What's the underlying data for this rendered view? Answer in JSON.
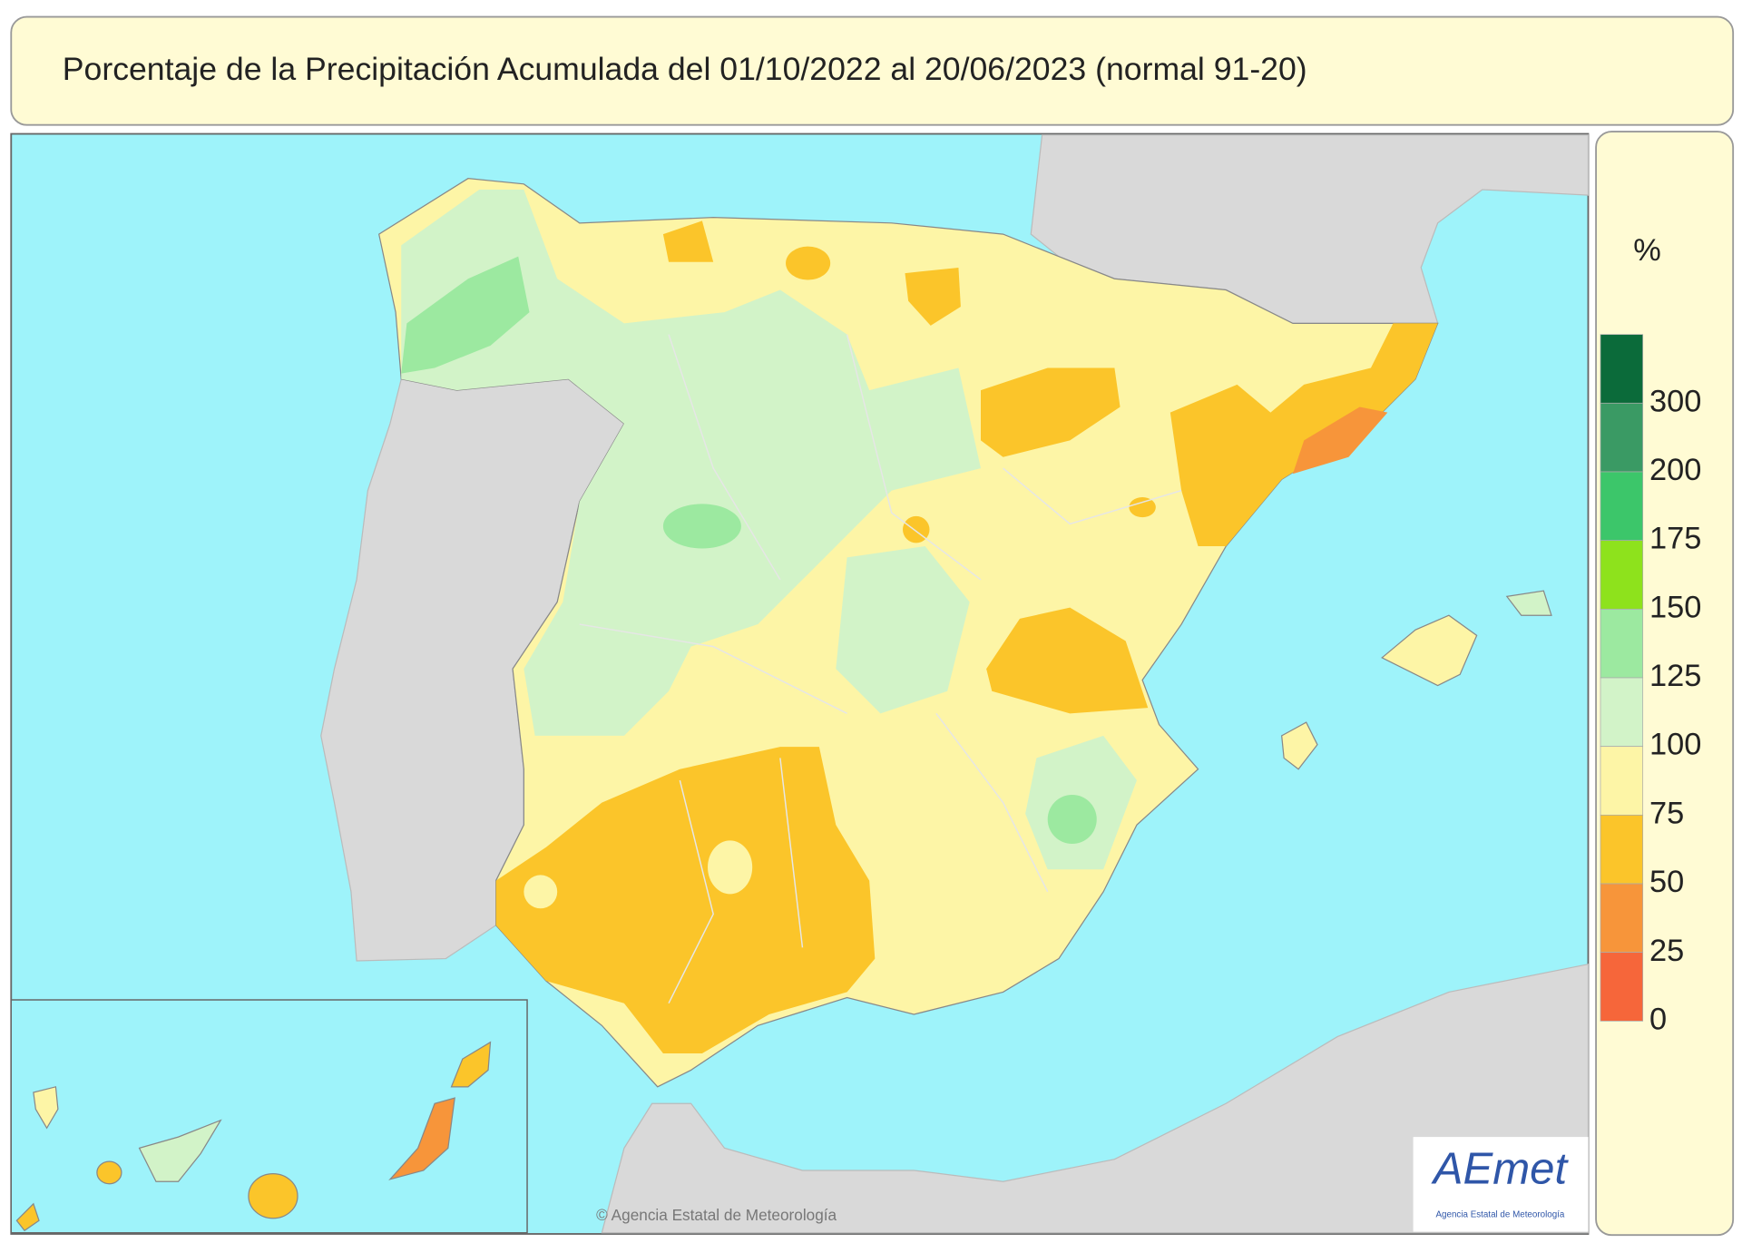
{
  "title": "Porcentaje de la Precipitación Acumulada del 01/10/2022 al 20/06/2023 (normal 91-20)",
  "legend": {
    "unit": "%",
    "items": [
      {
        "label": 300,
        "color": "#0b6b3a"
      },
      {
        "label": 200,
        "color": "#3a9a64"
      },
      {
        "label": 175,
        "color": "#3cc66a"
      },
      {
        "label": 150,
        "color": "#8ee21c"
      },
      {
        "label": 125,
        "color": "#9ce9a0"
      },
      {
        "label": 100,
        "color": "#d2f3c8"
      },
      {
        "label": 75,
        "color": "#fdf5a6"
      },
      {
        "label": 50,
        "color": "#fbc52a"
      },
      {
        "label": 25,
        "color": "#f7953a"
      },
      {
        "label": 0,
        "color": "#f6663a"
      }
    ]
  },
  "footer": "© Agencia Estatal de Meteorología",
  "logo": {
    "name": "AEmet",
    "subtitle": "Agencia Estatal de Meteorología"
  }
}
